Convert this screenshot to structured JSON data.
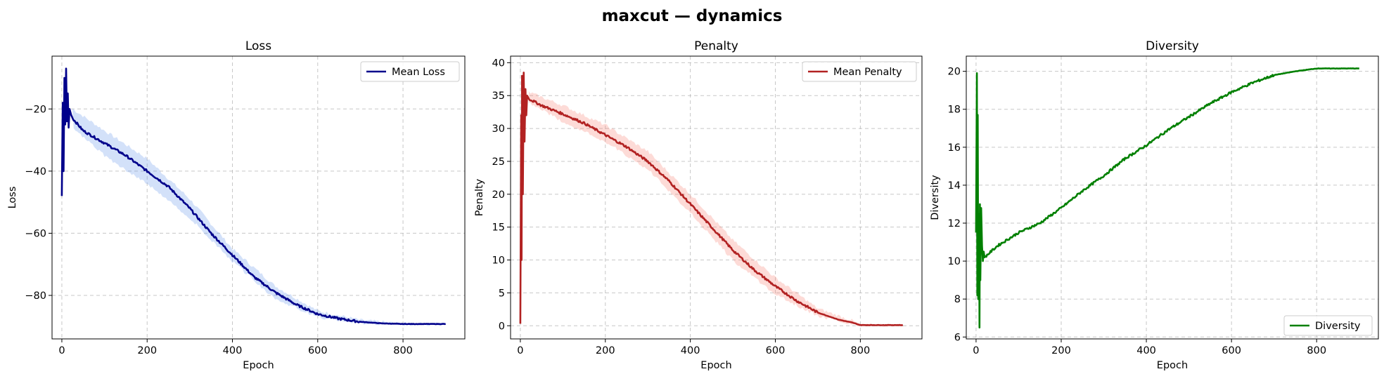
{
  "suptitle": "maxcut — dynamics",
  "chart_data": [
    {
      "type": "line",
      "title": "Loss",
      "xlabel": "Epoch",
      "ylabel": "Loss",
      "xlim": [
        -23,
        945
      ],
      "ylim": [
        -94,
        -3
      ],
      "xticks": [
        0,
        200,
        400,
        600,
        800
      ],
      "yticks": [
        -80,
        -60,
        -40,
        -20
      ],
      "ytick_labels": [
        "−80",
        "−60",
        "−40",
        "−20"
      ],
      "grid": true,
      "legend": "top-right",
      "series": [
        {
          "name": "Mean Loss",
          "color": "#00008b",
          "band_color": "#6495ed",
          "points": [
            [
              0,
              -48
            ],
            [
              2,
              -18
            ],
            [
              4,
              -40
            ],
            [
              6,
              -10
            ],
            [
              8,
              -25
            ],
            [
              10,
              -7
            ],
            [
              12,
              -24
            ],
            [
              14,
              -15
            ],
            [
              16,
              -26
            ],
            [
              18,
              -20
            ],
            [
              25,
              -23
            ],
            [
              50,
              -27
            ],
            [
              100,
              -31
            ],
            [
              150,
              -35
            ],
            [
              200,
              -40
            ],
            [
              250,
              -45
            ],
            [
              300,
              -52
            ],
            [
              350,
              -60
            ],
            [
              400,
              -67
            ],
            [
              450,
              -74
            ],
            [
              500,
              -79
            ],
            [
              550,
              -83
            ],
            [
              600,
              -86
            ],
            [
              650,
              -87.5
            ],
            [
              700,
              -88.5
            ],
            [
              750,
              -89
            ],
            [
              800,
              -89.2
            ],
            [
              850,
              -89.2
            ],
            [
              900,
              -89.2
            ]
          ],
          "band": [
            [
              25,
              -20,
              -26
            ],
            [
              100,
              -27,
              -35
            ],
            [
              200,
              -36,
              -44
            ],
            [
              300,
              -49,
              -55
            ],
            [
              400,
              -65,
              -69
            ],
            [
              500,
              -77,
              -81
            ],
            [
              600,
              -85,
              -87
            ],
            [
              700,
              -88,
              -89
            ],
            [
              800,
              -89.1,
              -89.3
            ],
            [
              900,
              -89.1,
              -89.3
            ]
          ]
        }
      ]
    },
    {
      "type": "line",
      "title": "Penalty",
      "xlabel": "Epoch",
      "ylabel": "Penalty",
      "xlim": [
        -23,
        945
      ],
      "ylim": [
        -2,
        41
      ],
      "xticks": [
        0,
        200,
        400,
        600,
        800
      ],
      "yticks": [
        0,
        5,
        10,
        15,
        20,
        25,
        30,
        35,
        40
      ],
      "grid": true,
      "legend": "top-right",
      "series": [
        {
          "name": "Mean Penalty",
          "color": "#b22222",
          "band_color": "#fa8072",
          "points": [
            [
              0,
              0.3
            ],
            [
              2,
              32
            ],
            [
              3,
              10
            ],
            [
              4,
              38
            ],
            [
              6,
              20
            ],
            [
              8,
              38.5
            ],
            [
              10,
              28
            ],
            [
              12,
              36
            ],
            [
              14,
              32
            ],
            [
              16,
              35
            ],
            [
              20,
              34.5
            ],
            [
              50,
              33.5
            ],
            [
              100,
              32.2
            ],
            [
              150,
              30.8
            ],
            [
              200,
              29
            ],
            [
              250,
              27.2
            ],
            [
              300,
              25
            ],
            [
              350,
              22
            ],
            [
              400,
              18.5
            ],
            [
              450,
              15
            ],
            [
              500,
              11.5
            ],
            [
              550,
              8.5
            ],
            [
              600,
              6
            ],
            [
              650,
              3.8
            ],
            [
              700,
              2
            ],
            [
              750,
              0.9
            ],
            [
              780,
              0.5
            ],
            [
              800,
              0.1
            ],
            [
              900,
              0.1
            ]
          ],
          "band": [
            [
              20,
              35.5,
              34
            ],
            [
              100,
              33.5,
              31
            ],
            [
              200,
              30.5,
              28
            ],
            [
              300,
              26.5,
              23.8
            ],
            [
              400,
              20,
              17.2
            ],
            [
              500,
              13,
              10
            ],
            [
              600,
              7.3,
              4.8
            ],
            [
              700,
              2.6,
              1.5
            ],
            [
              780,
              0.8,
              0.3
            ],
            [
              800,
              0.1,
              0.1
            ],
            [
              900,
              0.1,
              0.1
            ]
          ]
        }
      ]
    },
    {
      "type": "line",
      "title": "Diversity",
      "xlabel": "Epoch",
      "ylabel": "Diversity",
      "xlim": [
        -23,
        945
      ],
      "ylim": [
        5.9,
        20.8
      ],
      "xticks": [
        0,
        200,
        400,
        600,
        800
      ],
      "yticks": [
        6,
        8,
        10,
        12,
        14,
        16,
        18,
        20
      ],
      "grid": true,
      "legend": "bottom-right",
      "series": [
        {
          "name": "Diversity",
          "color": "#008000",
          "points": [
            [
              0,
              11.5
            ],
            [
              2,
              19.9
            ],
            [
              3,
              8.2
            ],
            [
              4,
              17.7
            ],
            [
              5,
              8
            ],
            [
              6,
              10
            ],
            [
              7,
              12.5
            ],
            [
              8,
              6.5
            ],
            [
              9,
              13
            ],
            [
              10,
              9
            ],
            [
              12,
              12.8
            ],
            [
              14,
              10.8
            ],
            [
              16,
              10
            ],
            [
              18,
              10.5
            ],
            [
              20,
              10.2
            ],
            [
              50,
              10.8
            ],
            [
              100,
              11.5
            ],
            [
              150,
              12
            ],
            [
              200,
              12.8
            ],
            [
              250,
              13.7
            ],
            [
              300,
              14.5
            ],
            [
              350,
              15.4
            ],
            [
              400,
              16.1
            ],
            [
              450,
              16.9
            ],
            [
              500,
              17.6
            ],
            [
              550,
              18.3
            ],
            [
              600,
              18.9
            ],
            [
              650,
              19.4
            ],
            [
              700,
              19.8
            ],
            [
              750,
              20
            ],
            [
              800,
              20.15
            ],
            [
              900,
              20.15
            ]
          ]
        }
      ]
    }
  ]
}
